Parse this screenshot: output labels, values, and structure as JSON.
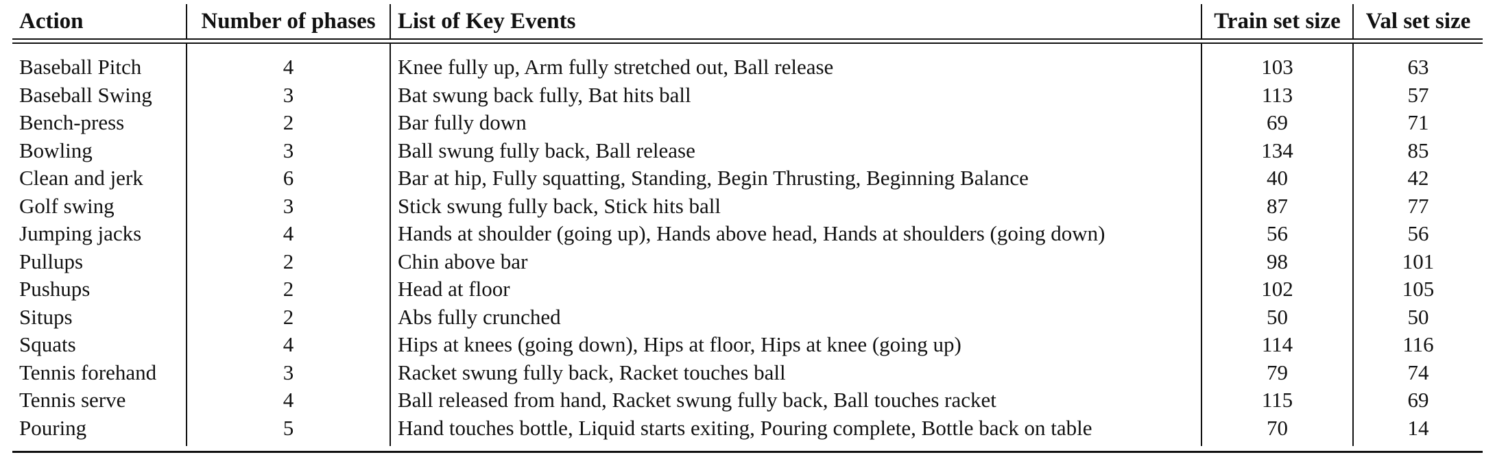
{
  "table": {
    "headers": {
      "action": "Action",
      "phases": "Number of phases",
      "events": "List of Key Events",
      "train": "Train set size",
      "val": "Val set size"
    },
    "rows": [
      {
        "action": "Baseball Pitch",
        "phases": "4",
        "events": "Knee fully up, Arm fully stretched out, Ball release",
        "train": "103",
        "val": "63"
      },
      {
        "action": "Baseball Swing",
        "phases": "3",
        "events": "Bat swung back fully, Bat hits ball",
        "train": "113",
        "val": "57"
      },
      {
        "action": "Bench-press",
        "phases": "2",
        "events": "Bar fully down",
        "train": "69",
        "val": "71"
      },
      {
        "action": "Bowling",
        "phases": "3",
        "events": "Ball swung fully back, Ball release",
        "train": "134",
        "val": "85"
      },
      {
        "action": "Clean and jerk",
        "phases": "6",
        "events": "Bar at hip, Fully squatting, Standing, Begin Thrusting, Beginning Balance",
        "train": "40",
        "val": "42"
      },
      {
        "action": "Golf swing",
        "phases": "3",
        "events": "Stick swung fully back, Stick hits ball",
        "train": "87",
        "val": "77"
      },
      {
        "action": "Jumping jacks",
        "phases": "4",
        "events": "Hands at shoulder (going up), Hands above head, Hands at shoulders (going down)",
        "train": "56",
        "val": "56"
      },
      {
        "action": "Pullups",
        "phases": "2",
        "events": "Chin above bar",
        "train": "98",
        "val": "101"
      },
      {
        "action": "Pushups",
        "phases": "2",
        "events": "Head at floor",
        "train": "102",
        "val": "105"
      },
      {
        "action": "Situps",
        "phases": "2",
        "events": "Abs fully crunched",
        "train": "50",
        "val": "50"
      },
      {
        "action": "Squats",
        "phases": "4",
        "events": "Hips at knees (going down), Hips at floor, Hips at knee (going up)",
        "train": "114",
        "val": "116"
      },
      {
        "action": "Tennis forehand",
        "phases": "3",
        "events": "Racket swung fully back, Racket touches ball",
        "train": "79",
        "val": "74"
      },
      {
        "action": "Tennis serve",
        "phases": "4",
        "events": "Ball released from hand, Racket swung fully back, Ball touches racket",
        "train": "115",
        "val": "69"
      },
      {
        "action": "Pouring",
        "phases": "5",
        "events": "Hand touches bottle, Liquid starts exiting, Pouring complete, Bottle back on table",
        "train": "70",
        "val": "14"
      }
    ]
  }
}
